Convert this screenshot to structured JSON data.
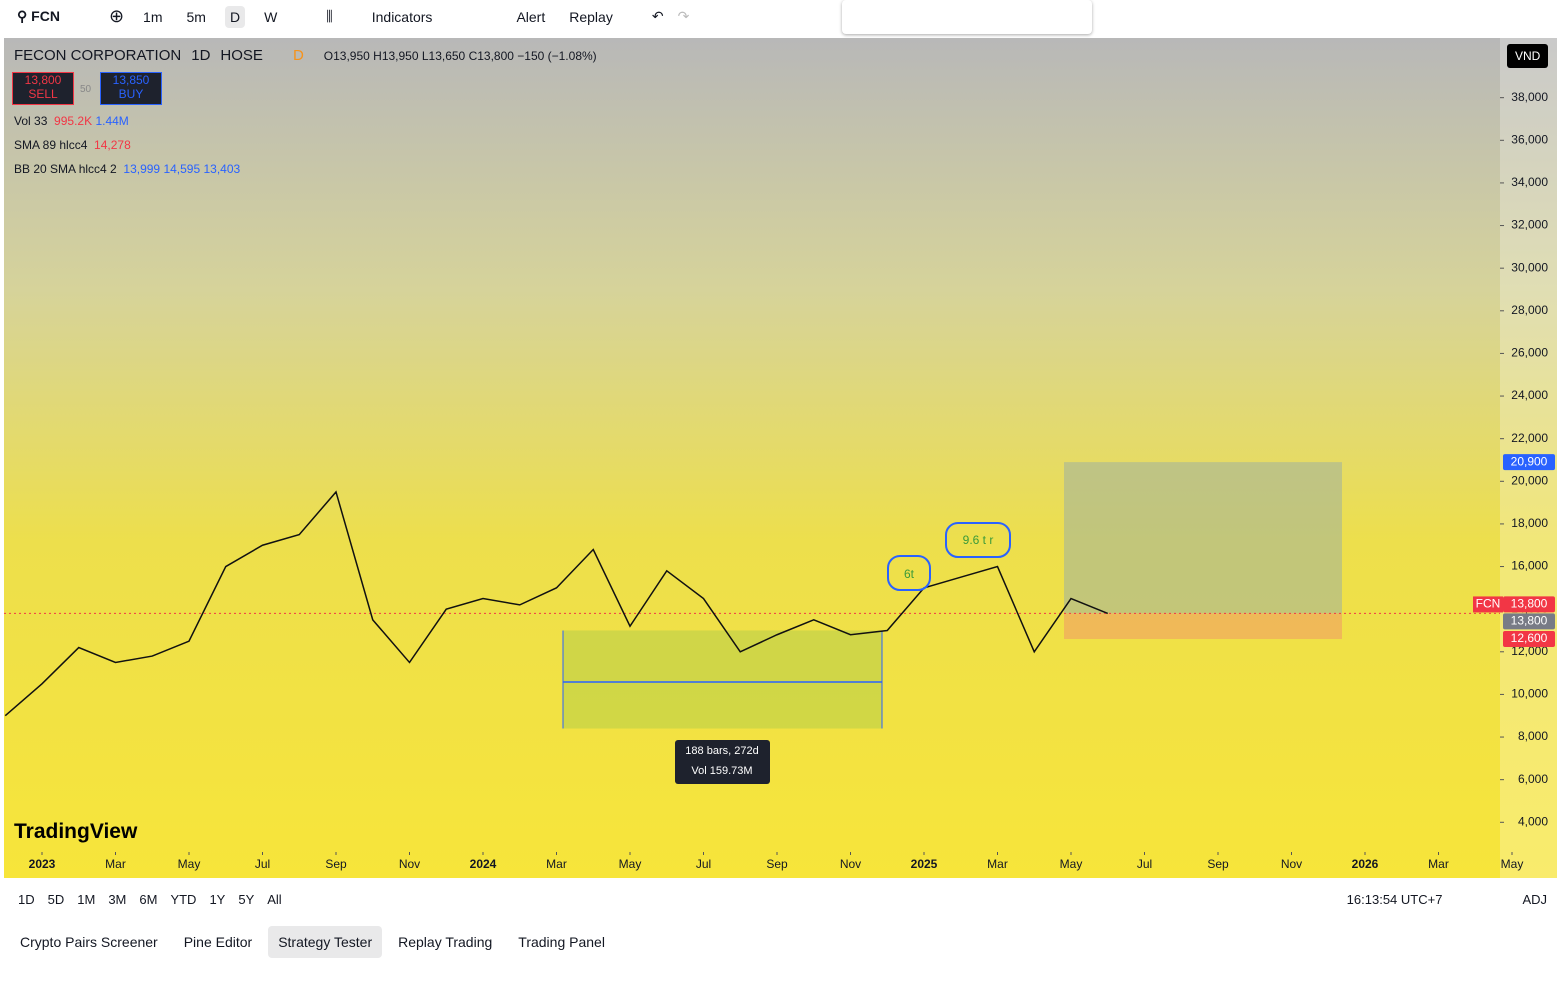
{
  "toolbar": {
    "symbol": "FCN",
    "intervals": [
      "1m",
      "5m",
      "D",
      "W"
    ],
    "indicators": "Indicators",
    "alert": "Alert",
    "replay": "Replay"
  },
  "legend": {
    "name": "FECON CORPORATION",
    "interval": "1D",
    "exchange": "HOSE",
    "flag": "D",
    "ohlc": "O13,950 H13,950 L13,650 C13,800 −150 (−1.08%)",
    "sell_price": "13,800",
    "sell": "SELL",
    "spread": "50",
    "buy_price": "13,850",
    "buy": "BUY",
    "indicators": [
      {
        "label": "Vol 33",
        "values": [
          "995.2K",
          "1.44M"
        ]
      },
      {
        "label": "SMA 89 hlcc4",
        "values": [
          "14,278"
        ]
      },
      {
        "label": "BB 20 SMA hlcc4 2",
        "values": [
          "13,999",
          "14,595",
          "13,403"
        ]
      }
    ]
  },
  "currency": "VND",
  "chart_data": {
    "type": "line",
    "color": "#111111",
    "x": [
      "2022-12",
      "2023-01",
      "2023-02",
      "2023-03",
      "2023-04",
      "2023-05",
      "2023-06",
      "2023-07",
      "2023-08",
      "2023-09",
      "2023-10",
      "2023-11",
      "2023-12",
      "2024-01",
      "2024-02",
      "2024-03",
      "2024-04",
      "2024-05",
      "2024-06",
      "2024-07",
      "2024-08",
      "2024-09",
      "2024-10",
      "2024-11",
      "2024-12",
      "2025-01",
      "2025-02",
      "2025-03",
      "2025-04",
      "2025-05",
      "2025-06"
    ],
    "values": [
      9000,
      10500,
      12200,
      11500,
      11800,
      12500,
      16000,
      17000,
      17500,
      19500,
      13500,
      11500,
      14000,
      14500,
      14200,
      15000,
      16800,
      13200,
      15800,
      14500,
      12000,
      12800,
      13500,
      12800,
      13000,
      15000,
      15500,
      16000,
      12000,
      14500,
      13800
    ],
    "ylim": [
      2700,
      40800
    ],
    "yticks": [
      {
        "value": 4000,
        "label": "4,000"
      },
      {
        "value": 6000,
        "label": "6,000"
      },
      {
        "value": 8000,
        "label": "8,000"
      },
      {
        "value": 10000,
        "label": "10,000"
      },
      {
        "value": 12000,
        "label": "12,000"
      },
      {
        "value": 14000,
        "label": "14,000"
      },
      {
        "value": 16000,
        "label": "16,000"
      },
      {
        "value": 18000,
        "label": "18,000"
      },
      {
        "value": 20000,
        "label": "20,000"
      },
      {
        "value": 22000,
        "label": "22,000"
      },
      {
        "value": 24000,
        "label": "24,000"
      },
      {
        "value": 26000,
        "label": "26,000"
      },
      {
        "value": 28000,
        "label": "28,000"
      },
      {
        "value": 30000,
        "label": "30,000"
      },
      {
        "value": 32000,
        "label": "32,000"
      },
      {
        "value": 34000,
        "label": "34,000"
      },
      {
        "value": 36000,
        "label": "36,000"
      },
      {
        "value": 38000,
        "label": "38,000"
      }
    ],
    "xticks": [
      {
        "value": "2023-01",
        "label": "2023"
      },
      {
        "value": "2023-03",
        "label": "Mar"
      },
      {
        "value": "2023-05",
        "label": "May"
      },
      {
        "value": "2023-07",
        "label": "Jul"
      },
      {
        "value": "2023-09",
        "label": "Sep"
      },
      {
        "value": "2023-11",
        "label": "Nov"
      },
      {
        "value": "2024-01",
        "label": "2024"
      },
      {
        "value": "2024-03",
        "label": "Mar"
      },
      {
        "value": "2024-05",
        "label": "May"
      },
      {
        "value": "2024-07",
        "label": "Jul"
      },
      {
        "value": "2024-09",
        "label": "Sep"
      },
      {
        "value": "2024-11",
        "label": "Nov"
      },
      {
        "value": "2025-01",
        "label": "2025"
      },
      {
        "value": "2025-03",
        "label": "Mar"
      },
      {
        "value": "2025-05",
        "label": "May"
      },
      {
        "value": "2025-07",
        "label": "Jul"
      },
      {
        "value": "2025-09",
        "label": "Sep"
      },
      {
        "value": "2025-11",
        "label": "Nov"
      },
      {
        "value": "2026-01",
        "label": "2026"
      },
      {
        "value": "2026-03",
        "label": "Mar"
      },
      {
        "value": "2026-05",
        "label": "May"
      }
    ],
    "price_tags": [
      {
        "value": 20900,
        "label": "20,900",
        "color": "#2962ff"
      },
      {
        "value": 13800,
        "label": "13,800",
        "color": "#f23645"
      },
      {
        "value": 13800,
        "label": "13,800",
        "color": "#787b86"
      },
      {
        "value": 12600,
        "label": "12,600",
        "color": "#f23645"
      }
    ],
    "symbol_tag": "FCN",
    "range_box": {
      "low": 8400,
      "high": 13000,
      "measure": "188 bars, 272d",
      "volume": "Vol 159.73M"
    },
    "position_box": {
      "target": 20900,
      "entry": 13800,
      "stop": 12600
    },
    "callouts": [
      "9.6 t r",
      "6t"
    ]
  },
  "bottom": {
    "ranges": [
      "1D",
      "5D",
      "1M",
      "3M",
      "6M",
      "YTD",
      "1Y",
      "5Y",
      "All"
    ],
    "time": "16:13:54 UTC+7",
    "adj": "ADJ",
    "tabs": [
      "Crypto Pairs Screener",
      "Pine Editor",
      "Strategy Tester",
      "Replay Trading",
      "Trading Panel"
    ]
  }
}
